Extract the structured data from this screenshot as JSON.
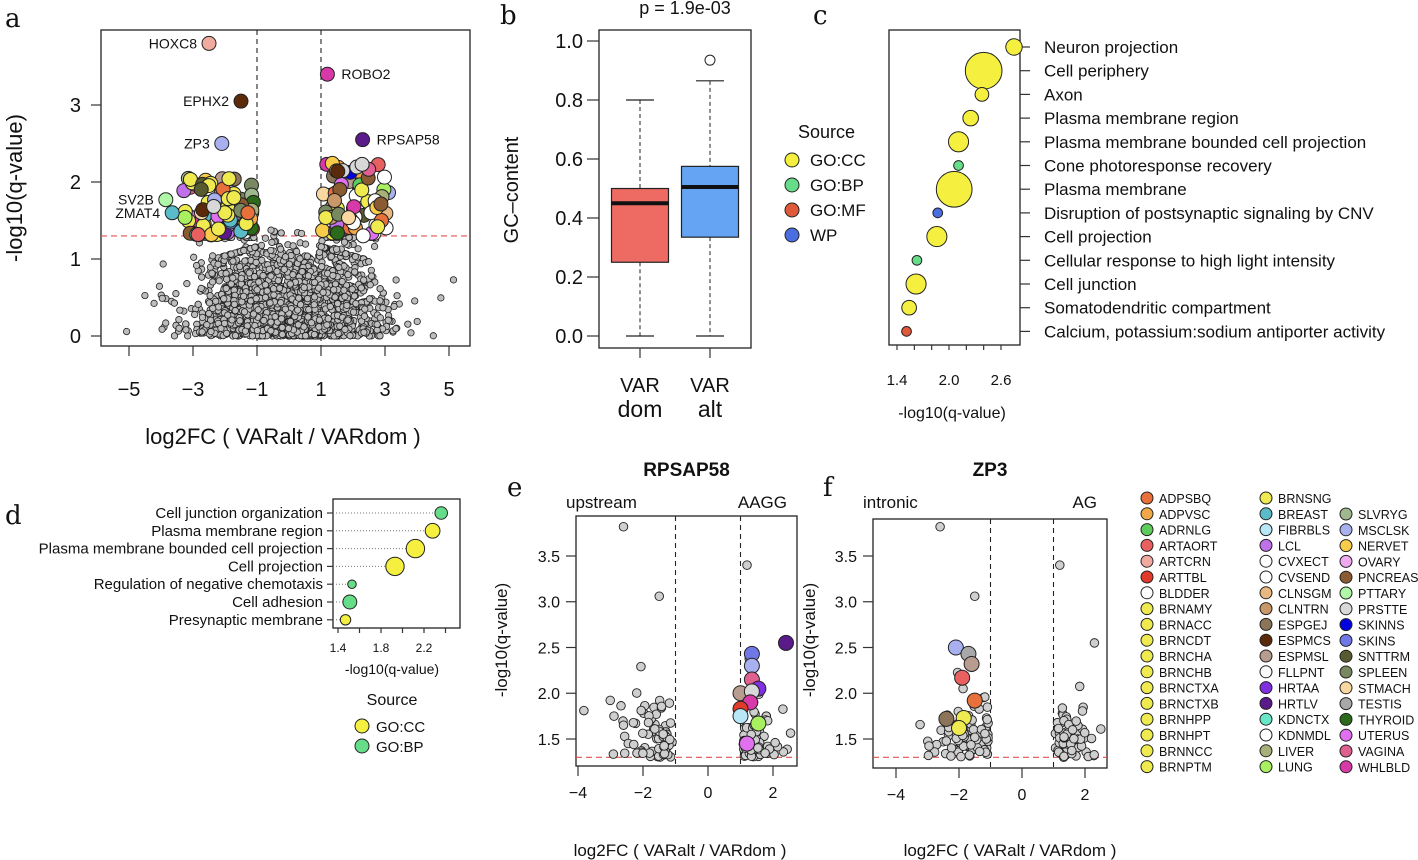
{
  "palette": {
    "ADPSBQ": "#e8703a",
    "ADPVSC": "#f0a848",
    "ADRNLG": "#5ccc5c",
    "ARTAORT": "#e86060",
    "ARTCRN": "#f0aaa0",
    "ARTTBL": "#e03a2a",
    "BLDDER": "#ffffff",
    "BRNAMY": "#eeea50",
    "BRNACC": "#eeea50",
    "BRNCDT": "#eeea50",
    "BRNCHA": "#eeea50",
    "BRNCHB": "#eeea50",
    "BRNCTXA": "#eeea50",
    "BRNCTXB": "#eeea50",
    "BRNHPP": "#eeea50",
    "BRNHPT": "#eeea50",
    "BRNNCC": "#eeea50",
    "BRNPTM": "#eeea50",
    "BRNSNG": "#eeea50",
    "BREAST": "#5abcc8",
    "FIBRBLS": "#b8e8f8",
    "LCL": "#c070e8",
    "CVXECT": "#ffffff",
    "CVSEND": "#ffffff",
    "CLNSGM": "#e8b880",
    "CLNTRN": "#c89868",
    "ESPGEJ": "#8c7458",
    "ESPMCS": "#5a2a0a",
    "ESPMSL": "#b89c90",
    "FLLPNT": "#fafafa",
    "HRTAA": "#8030e0",
    "HRTLV": "#5a1a8a",
    "KDNCTX": "#68e8c8",
    "KDNMDL": "#ffffff",
    "LIVER": "#a8b07a",
    "LUNG": "#a8f060",
    "SLVRYG": "#a0b890",
    "MSCLSK": "#a8b0f0",
    "NERVET": "#f8cc48",
    "OVARY": "#f0a8f0",
    "PNCREAS": "#8a5a30",
    "PTTARY": "#b0f8a8",
    "PRSTTE": "#d8d8d8",
    "SKINNS": "#0000e0",
    "SKINS": "#7078e8",
    "SNTTRM": "#585a30",
    "SPLEEN": "#788860",
    "STMACH": "#f8d8a0",
    "TESTIS": "#a8a8a8",
    "THYROID": "#2a6a1a",
    "UTERUS": "#e070f0",
    "VAGINA": "#e06090",
    "WHLBLD": "#d838a8"
  },
  "source_colors": {
    "GO:CC": "#f5f040",
    "GO:BP": "#66dd88",
    "GO:MF": "#e05a3a",
    "WP": "#4a6ee0"
  },
  "tissue_legend": {
    "columns": [
      [
        "ADPSBQ",
        "ADPVSC",
        "ADRNLG",
        "ARTAORT",
        "ARTCRN",
        "ARTTBL",
        "BLDDER",
        "BRNAMY",
        "BRNACC",
        "BRNCDT",
        "BRNCHA",
        "BRNCHB",
        "BRNCTXA",
        "BRNCTXB",
        "BRNHPP",
        "BRNHPT",
        "BRNNCC",
        "BRNPTM"
      ],
      [
        "BRNSNG",
        "BREAST",
        "FIBRBLS",
        "LCL",
        "CVXECT",
        "CVSEND",
        "CLNSGM",
        "CLNTRN",
        "ESPGEJ",
        "ESPMCS",
        "ESPMSL",
        "FLLPNT",
        "HRTAA",
        "HRTLV",
        "KDNCTX",
        "KDNMDL",
        "LIVER",
        "LUNG"
      ],
      [
        "SLVRYG",
        "MSCLSK",
        "NERVET",
        "OVARY",
        "PNCREAS",
        "PTTARY",
        "PRSTTE",
        "SKINNS",
        "SKINS",
        "SNTTRM",
        "SPLEEN",
        "STMACH",
        "TESTIS",
        "THYROID",
        "UTERUS",
        "VAGINA",
        "WHLBLD"
      ]
    ]
  },
  "chart_data": [
    {
      "panel": "a",
      "type": "scatter",
      "xlabel": "log2FC ( VARalt / VARdom )",
      "ylabel": "-log10(q-value)",
      "xticks": [
        "-5",
        "-3",
        "-1",
        "1",
        "3",
        "5"
      ],
      "yticks": [
        "0",
        "1",
        "2",
        "3"
      ],
      "xlim": [
        -5.9,
        5.7
      ],
      "ylim": [
        -0.13,
        3.97
      ],
      "significance_threshold": 1.3,
      "fc_thresholds": [
        -1,
        1
      ],
      "n_background_points": 2600,
      "n_colored_points": 150,
      "labeled_points": [
        {
          "label": "HOXC8",
          "x": -2.5,
          "y": 3.8,
          "tissue": "ARTCRN"
        },
        {
          "label": "ROBO2",
          "x": 1.2,
          "y": 3.4,
          "tissue": "WHLBLD"
        },
        {
          "label": "EPHX2",
          "x": -1.5,
          "y": 3.05,
          "tissue": "ESPMCS"
        },
        {
          "label": "RPSAP58",
          "x": 2.3,
          "y": 2.55,
          "tissue": "HRTLV"
        },
        {
          "label": "ZP3",
          "x": -2.1,
          "y": 2.5,
          "tissue": "MSCLSK"
        },
        {
          "label": "SV2B",
          "x": -3.85,
          "y": 1.77,
          "tissue": "PTTARY"
        },
        {
          "label": "ZMAT4",
          "x": -3.65,
          "y": 1.6,
          "tissue": "BREAST"
        }
      ]
    },
    {
      "panel": "b",
      "type": "box",
      "title": "p = 1.9e-03",
      "ylabel": "GC–content",
      "yticks": [
        "0.0",
        "0.2",
        "0.4",
        "0.6",
        "0.8",
        "1.0"
      ],
      "ylim": [
        -0.04,
        1.04
      ],
      "groups": [
        {
          "line1": "VAR",
          "line2": "dom",
          "min": 0.0,
          "q1": 0.25,
          "median": 0.45,
          "q3": 0.5,
          "max": 0.8,
          "outliers": [],
          "color": "#ee6b63"
        },
        {
          "line1": "VAR",
          "line2": "alt",
          "min": 0.0,
          "q1": 0.335,
          "median": 0.505,
          "q3": 0.575,
          "max": 0.865,
          "outliers": [
            0.935
          ],
          "color": "#65a4f2"
        }
      ]
    },
    {
      "panel": "c",
      "type": "bubble",
      "xlabel": "-log10(q-value)",
      "xticks": [
        "1.4",
        "2.0",
        "2.6"
      ],
      "xlim": [
        1.32,
        2.8
      ],
      "legend_title": "Source",
      "legend": [
        "GO:CC",
        "GO:BP",
        "GO:MF",
        "WP"
      ],
      "terms": [
        {
          "label": "Neuron projection",
          "x": 2.75,
          "size": 2,
          "source": "GO:CC"
        },
        {
          "label": "Cell periphery",
          "x": 2.4,
          "size": 10,
          "source": "GO:CC"
        },
        {
          "label": "Axon",
          "x": 2.38,
          "size": 1.4,
          "source": "GO:CC"
        },
        {
          "label": "Plasma membrane region",
          "x": 2.25,
          "size": 1.8,
          "source": "GO:CC"
        },
        {
          "label": "Plasma membrane bounded cell projection",
          "x": 2.11,
          "size": 3,
          "source": "GO:CC"
        },
        {
          "label": "Cone photoresponse recovery",
          "x": 2.11,
          "size": 0.7,
          "source": "GO:BP"
        },
        {
          "label": "Plasma membrane",
          "x": 2.06,
          "size": 9.5,
          "source": "GO:CC"
        },
        {
          "label": "Disruption of postsynaptic signaling by CNV",
          "x": 1.87,
          "size": 0.7,
          "source": "WP"
        },
        {
          "label": "Cell projection",
          "x": 1.86,
          "size": 3,
          "source": "GO:CC"
        },
        {
          "label": "Cellular response to high light intensity",
          "x": 1.63,
          "size": 0.7,
          "source": "GO:BP"
        },
        {
          "label": "Cell junction",
          "x": 1.62,
          "size": 3,
          "source": "GO:CC"
        },
        {
          "label": "Somatodendritic compartment",
          "x": 1.54,
          "size": 1.6,
          "source": "GO:CC"
        },
        {
          "label": "Calcium, potassium:sodium antiporter activity",
          "x": 1.51,
          "size": 0.7,
          "source": "GO:MF"
        }
      ]
    },
    {
      "panel": "d",
      "type": "bubble",
      "xlabel": "-log10(q-value)",
      "xticks": [
        "1.4",
        "1.8",
        "2.2"
      ],
      "xlim": [
        1.35,
        2.45
      ],
      "legend_title": "Source",
      "legend": [
        "GO:CC",
        "GO:BP"
      ],
      "terms": [
        {
          "label": "Cell junction organization",
          "x": 2.36,
          "size": 1.3,
          "source": "GO:BP"
        },
        {
          "label": "Plasma membrane region",
          "x": 2.28,
          "size": 1.8,
          "source": "GO:CC"
        },
        {
          "label": "Plasma membrane bounded cell projection",
          "x": 2.12,
          "size": 2.8,
          "source": "GO:CC"
        },
        {
          "label": "Cell projection",
          "x": 1.93,
          "size": 2.8,
          "source": "GO:CC"
        },
        {
          "label": "Regulation of negative chemotaxis",
          "x": 1.53,
          "size": 0.6,
          "source": "GO:BP"
        },
        {
          "label": "Cell adhesion",
          "x": 1.51,
          "size": 1.6,
          "source": "GO:BP"
        },
        {
          "label": "Presynaptic membrane",
          "x": 1.47,
          "size": 0.9,
          "source": "GO:CC"
        }
      ]
    },
    {
      "panel": "e",
      "type": "scatter",
      "title": "RPSAP58",
      "left_note": "upstream",
      "right_note": "AAGG",
      "xlabel": "log2FC ( VARalt / VARdom )",
      "ylabel": "-log10(q-value)",
      "xticks": [
        "-4",
        "-2",
        "0",
        "2"
      ],
      "yticks": [
        "1.5",
        "2.0",
        "2.5",
        "3.0",
        "3.5"
      ],
      "xlim": [
        -4.1,
        2.8
      ],
      "ylim": [
        1.22,
        3.95
      ],
      "significance_threshold": 1.3,
      "fc_thresholds": [
        -1,
        1
      ],
      "n_background_points": 150,
      "colored_points": [
        {
          "x": 2.4,
          "y": 2.55,
          "tissue": "HRTLV"
        },
        {
          "x": 1.35,
          "y": 2.43,
          "tissue": "SKINS"
        },
        {
          "x": 1.35,
          "y": 2.3,
          "tissue": "MSCLSK"
        },
        {
          "x": 1.35,
          "y": 2.15,
          "tissue": "VAGINA"
        },
        {
          "x": 1.55,
          "y": 2.05,
          "tissue": "HRTAA"
        },
        {
          "x": 1.0,
          "y": 2.0,
          "tissue": "ESPMSL"
        },
        {
          "x": 1.35,
          "y": 2.02,
          "tissue": "PRSTTE"
        },
        {
          "x": 1.3,
          "y": 1.9,
          "tissue": "WHLBLD"
        },
        {
          "x": 1.0,
          "y": 1.83,
          "tissue": "ARTTBL"
        },
        {
          "x": 1.0,
          "y": 1.75,
          "tissue": "FIBRBLS"
        },
        {
          "x": 1.55,
          "y": 1.67,
          "tissue": "LUNG"
        },
        {
          "x": 1.2,
          "y": 1.45,
          "tissue": "UTERUS"
        }
      ],
      "outliers": [
        {
          "x": -2.6,
          "y": 3.82
        },
        {
          "x": 1.2,
          "y": 3.4
        },
        {
          "x": -1.5,
          "y": 3.06
        }
      ]
    },
    {
      "panel": "f",
      "type": "scatter",
      "title": "ZP3",
      "left_note": "intronic",
      "right_note": "AG",
      "xlabel": "log2FC ( VARalt / VARdom )",
      "ylabel": "-log10(q-value)",
      "xticks": [
        "-4",
        "-2",
        "0",
        "2"
      ],
      "yticks": [
        "1.5",
        "2.0",
        "2.5",
        "3.0",
        "3.5"
      ],
      "xlim": [
        -4.2,
        2.8
      ],
      "ylim": [
        1.22,
        3.95
      ],
      "significance_threshold": 1.3,
      "fc_thresholds": [
        -1,
        1
      ],
      "n_background_points": 150,
      "colored_points": [
        {
          "x": -2.1,
          "y": 2.5,
          "tissue": "MSCLSK"
        },
        {
          "x": -1.7,
          "y": 2.43,
          "tissue": "TESTIS"
        },
        {
          "x": -1.6,
          "y": 2.32,
          "tissue": "ESPMSL"
        },
        {
          "x": -1.9,
          "y": 2.17,
          "tissue": "ARTAORT"
        },
        {
          "x": -1.5,
          "y": 1.92,
          "tissue": "ADPSBQ"
        },
        {
          "x": -2.4,
          "y": 1.72,
          "tissue": "ESPGEJ"
        },
        {
          "x": -1.85,
          "y": 1.73,
          "tissue": "BRNCTXA"
        },
        {
          "x": -2.0,
          "y": 1.62,
          "tissue": "BRNHPP"
        }
      ],
      "outliers": [
        {
          "x": -2.6,
          "y": 3.82
        },
        {
          "x": 1.2,
          "y": 3.4
        },
        {
          "x": -1.5,
          "y": 3.06
        },
        {
          "x": 2.3,
          "y": 2.55
        }
      ]
    }
  ]
}
